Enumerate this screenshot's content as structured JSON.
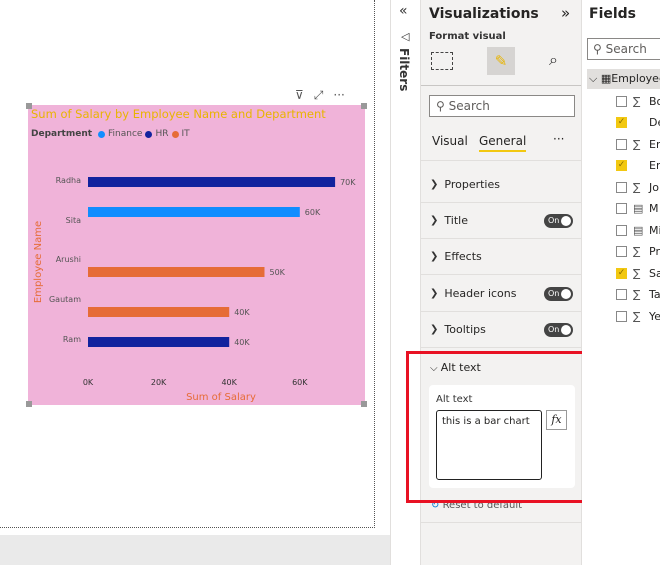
{
  "visual": {
    "title": "Sum of Salary by Employee Name and Department",
    "legend_title": "Department"
  },
  "chart_data": {
    "type": "bar",
    "orientation": "horizontal",
    "title": "Sum of Salary by Employee Name and Department",
    "xlabel": "Sum of Salary",
    "ylabel": "Employee Name",
    "xlim": [
      0,
      70000
    ],
    "x_ticks": [
      "0K",
      "20K",
      "40K",
      "60K"
    ],
    "legend": {
      "title": "Department",
      "position": "top-left",
      "entries": [
        {
          "name": "Finance",
          "color": "#118dff"
        },
        {
          "name": "HR",
          "color": "#12239e"
        },
        {
          "name": "IT",
          "color": "#e66c37"
        }
      ]
    },
    "categories": [
      "Radha",
      "Sita",
      "Arushi",
      "Gautam",
      "Ram"
    ],
    "departments": [
      "HR",
      "Finance",
      "IT",
      "IT",
      "HR"
    ],
    "values": [
      70000,
      60000,
      50000,
      40000,
      40000
    ],
    "data_labels": [
      "70K",
      "60K",
      "50K",
      "40K",
      "40K"
    ],
    "grid": false
  },
  "filters": {
    "label": "Filters"
  },
  "viz": {
    "title": "Visualizations",
    "subtitle": "Format visual",
    "search_placeholder": "Search",
    "tabs": [
      "Visual",
      "General"
    ],
    "active_tab": "General",
    "more": "···",
    "sections": [
      {
        "label": "Properties"
      },
      {
        "label": "Title",
        "toggle": "On"
      },
      {
        "label": "Effects"
      },
      {
        "label": "Header icons",
        "toggle": "On"
      },
      {
        "label": "Tooltips",
        "toggle": "On"
      }
    ],
    "alt_text": {
      "section": "Alt text",
      "field_label": "Alt text",
      "value": "this is a bar chart",
      "fx": "fx"
    },
    "reset": "Reset to default"
  },
  "fields": {
    "title": "Fields",
    "search_placeholder": "Search",
    "table": "Employee",
    "items": [
      {
        "label": "Bo",
        "icon": "sigma",
        "checked": false
      },
      {
        "label": "De",
        "icon": "",
        "checked": true
      },
      {
        "label": "Em",
        "icon": "sigma",
        "checked": false
      },
      {
        "label": "Em",
        "icon": "",
        "checked": true
      },
      {
        "label": "Jo",
        "icon": "sigma",
        "checked": false
      },
      {
        "label": "M",
        "icon": "calculator",
        "checked": false
      },
      {
        "label": "Mi",
        "icon": "calculator",
        "checked": false
      },
      {
        "label": "Pr",
        "icon": "sigma",
        "checked": false
      },
      {
        "label": "Sa",
        "icon": "sigma",
        "checked": true
      },
      {
        "label": "Ta",
        "icon": "sigma",
        "checked": false
      },
      {
        "label": "Ye",
        "icon": "sigma",
        "checked": false
      }
    ]
  },
  "colors": {
    "accent": "#f2c811",
    "highlight": "#e81123",
    "visual_bg": "#f0b3d9",
    "title": "#e8b400",
    "axis_title": "#e66c37"
  }
}
